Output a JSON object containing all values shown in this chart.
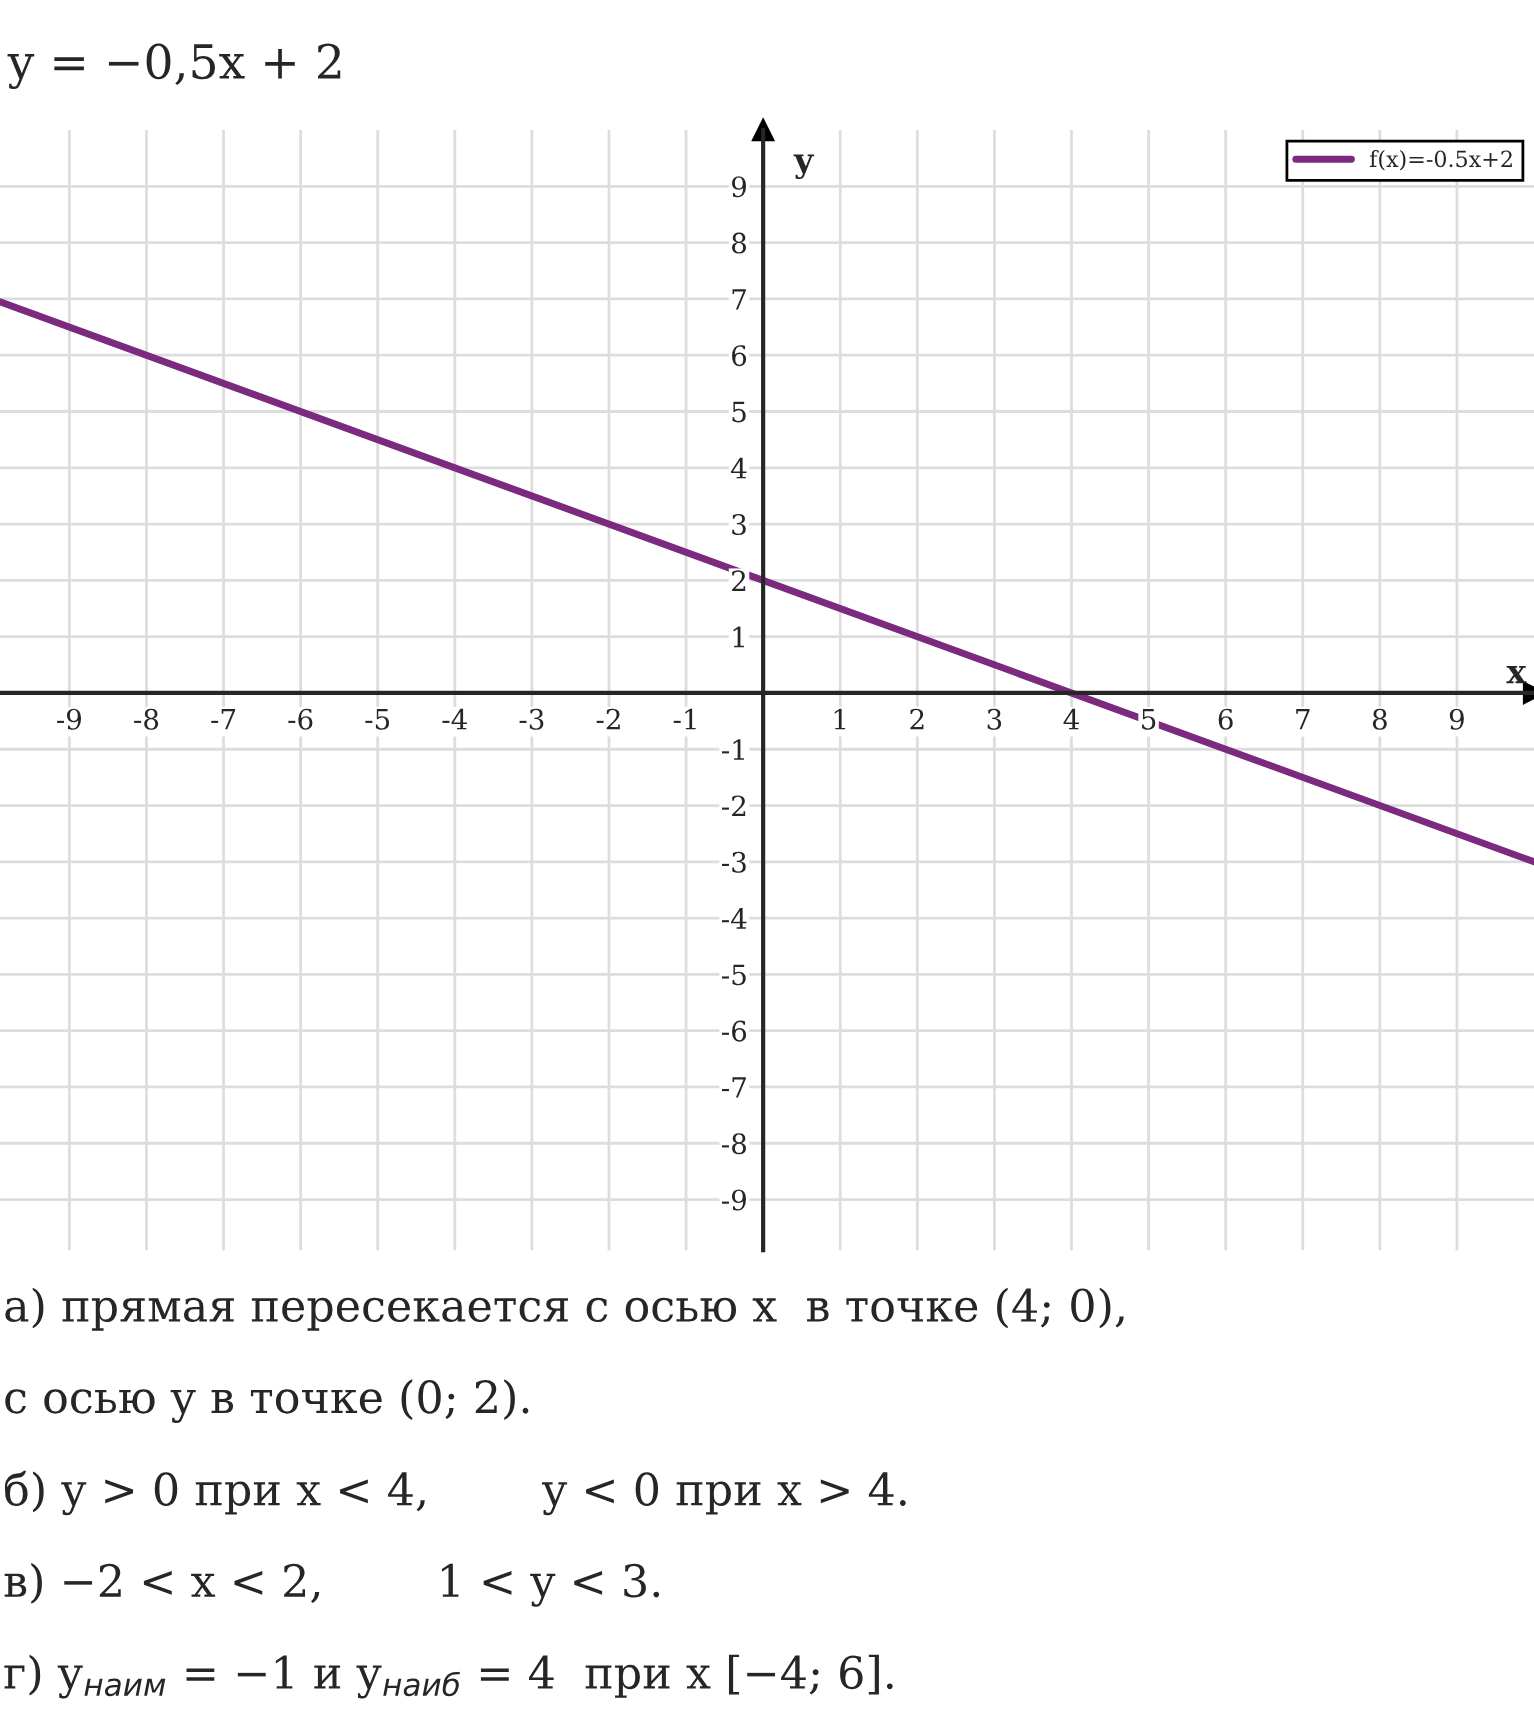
{
  "chart_data": {
    "type": "line",
    "title": "y = −0,5x + 2",
    "xlabel": "x",
    "ylabel": "y",
    "x": [
      -9.9,
      10
    ],
    "series": [
      {
        "name": "f(x)=-0.5x+2",
        "color": "#7b2a80",
        "values": [
          6.95,
          -3
        ]
      }
    ],
    "xlim": [
      -9.9,
      10
    ],
    "ylim": [
      -9.9,
      10
    ],
    "xticks": [
      -9,
      -8,
      -7,
      -6,
      -5,
      -4,
      -3,
      -2,
      -1,
      1,
      2,
      3,
      4,
      5,
      6,
      7,
      8,
      9
    ],
    "yticks": [
      -9,
      -8,
      -7,
      -6,
      -5,
      -4,
      -3,
      -2,
      -1,
      1,
      2,
      3,
      4,
      5,
      6,
      7,
      8,
      9
    ],
    "grid": true,
    "legend": "top right",
    "marker": "none",
    "line_style": "solid",
    "annotations": [
      "а) прямая пересекается с осью x  в точке (4; 0),",
      "с осью y в точке (0; 2).",
      "б) y > 0 при x < 4,        y < 0 при x > 4.",
      "в) −2 < x < 2,        1 < y < 3.",
      "г) y$_{наим}$ = −1 и y$_{наиб}$ = 4  при x [−4; 6]."
    ]
  }
}
